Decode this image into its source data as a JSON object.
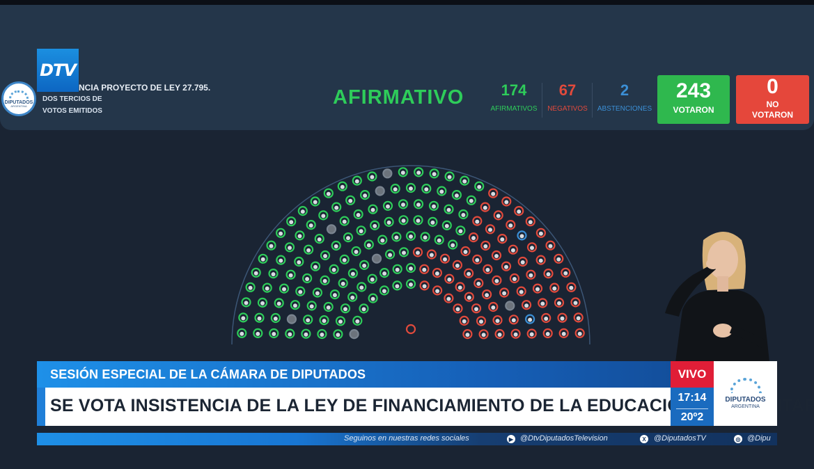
{
  "header": {
    "logo_text": "DTV",
    "emblem_name": "DIPUTADOS",
    "emblem_sub": "ARGENTINA",
    "project_line": "NCIA PROYECTO DE LEY 27.795.",
    "subtitle_line1": "DOS TERCIOS DE",
    "subtitle_line2": "VOTOS EMITIDOS",
    "result": "AFIRMATIVO"
  },
  "stats": {
    "afirmativos": {
      "value": "174",
      "label": "AFIRMATIVOS",
      "color": "#2ecc5a"
    },
    "negativos": {
      "value": "67",
      "label": "NEGATIVOS",
      "color": "#e14a3c"
    },
    "abstenciones": {
      "value": "2",
      "label": "ABSTENCIONES",
      "color": "#3b8fd6"
    },
    "votaron": {
      "value": "243",
      "label": "VOTARON"
    },
    "no_votaron": {
      "value": "0",
      "label_line1": "NO",
      "label_line2": "VOTARON"
    }
  },
  "hemicycle": {
    "colors": {
      "afirmativo": "#2ecc5a",
      "negativo": "#e14a3c",
      "abstencion": "#3b8fd6",
      "ausente": "#7a8490"
    }
  },
  "lower_third": {
    "title": "SESIÓN ESPECIAL DE LA CÁMARA DE DIPUTADOS",
    "headline": "SE VOTA INSISTENCIA DE LA LEY DE FINANCIAMIENTO DE LA EDUCACIÓN UNIVERSITARIA",
    "live": "VIVO",
    "clock": "17:14",
    "temperature": "20º2",
    "brand_name": "DIPUTADOS",
    "brand_sub": "ARGENTINA"
  },
  "ticker": {
    "follow": "Seguinos en nuestras redes sociales",
    "youtube": "@DtvDiputadosTelevision",
    "x": "@DiputadosTV",
    "instagram": "@Dipu",
    "youtube_icon": "play-icon",
    "x_icon": "x-logo-icon",
    "instagram_icon": "camera-icon"
  }
}
